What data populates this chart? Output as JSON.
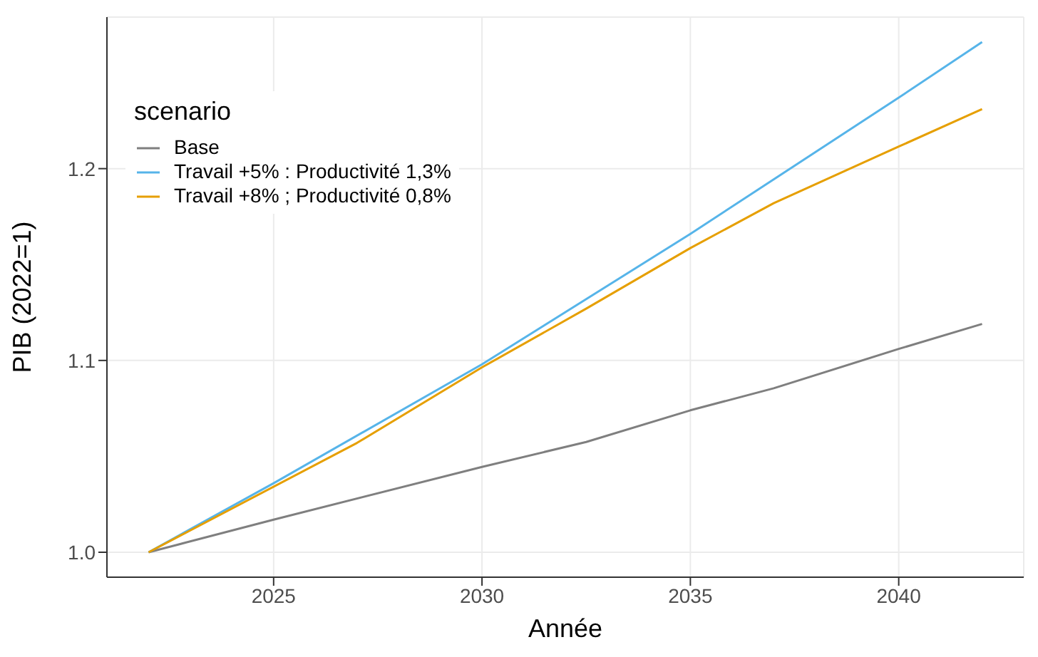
{
  "chart_data": {
    "type": "line",
    "xlabel": "Année",
    "ylabel": "PIB (2022=1)",
    "legend_title": "scenario",
    "legend": "top left",
    "grid": true,
    "marker": "none",
    "line_style": "solid",
    "xlim": [
      2021,
      2043
    ],
    "xticks": [
      2025,
      2030,
      2035,
      2040
    ],
    "ylim": [
      0.987,
      1.279
    ],
    "yticks": [
      {
        "value": 1,
        "label": "1.0"
      },
      {
        "value": 1.1,
        "label": "1.1"
      },
      {
        "value": 1.2,
        "label": "1.2"
      }
    ],
    "series": [
      {
        "name": "Base",
        "color": "#7f7f7f",
        "x": [
          2022,
          2025,
          2030,
          2032.5,
          2035,
          2037,
          2040,
          2042
        ],
        "values": [
          1.0,
          1.017,
          1.0445,
          1.0575,
          1.074,
          1.0855,
          1.106,
          1.119
        ]
      },
      {
        "name": "Travail +5% : Productivité 1,3%",
        "color": "#56b4e9",
        "x": [
          2022,
          2025,
          2030,
          2035,
          2040,
          2042
        ],
        "values": [
          1.0,
          1.036,
          1.098,
          1.166,
          1.237,
          1.266
        ]
      },
      {
        "name": "Travail +8% ; Productivité 0,8%",
        "color": "#e69f00",
        "x": [
          2022,
          2027,
          2030,
          2032.5,
          2035,
          2037,
          2040,
          2042
        ],
        "values": [
          1.0,
          1.057,
          1.0964,
          1.127,
          1.1586,
          1.182,
          1.2115,
          1.231
        ]
      }
    ]
  }
}
